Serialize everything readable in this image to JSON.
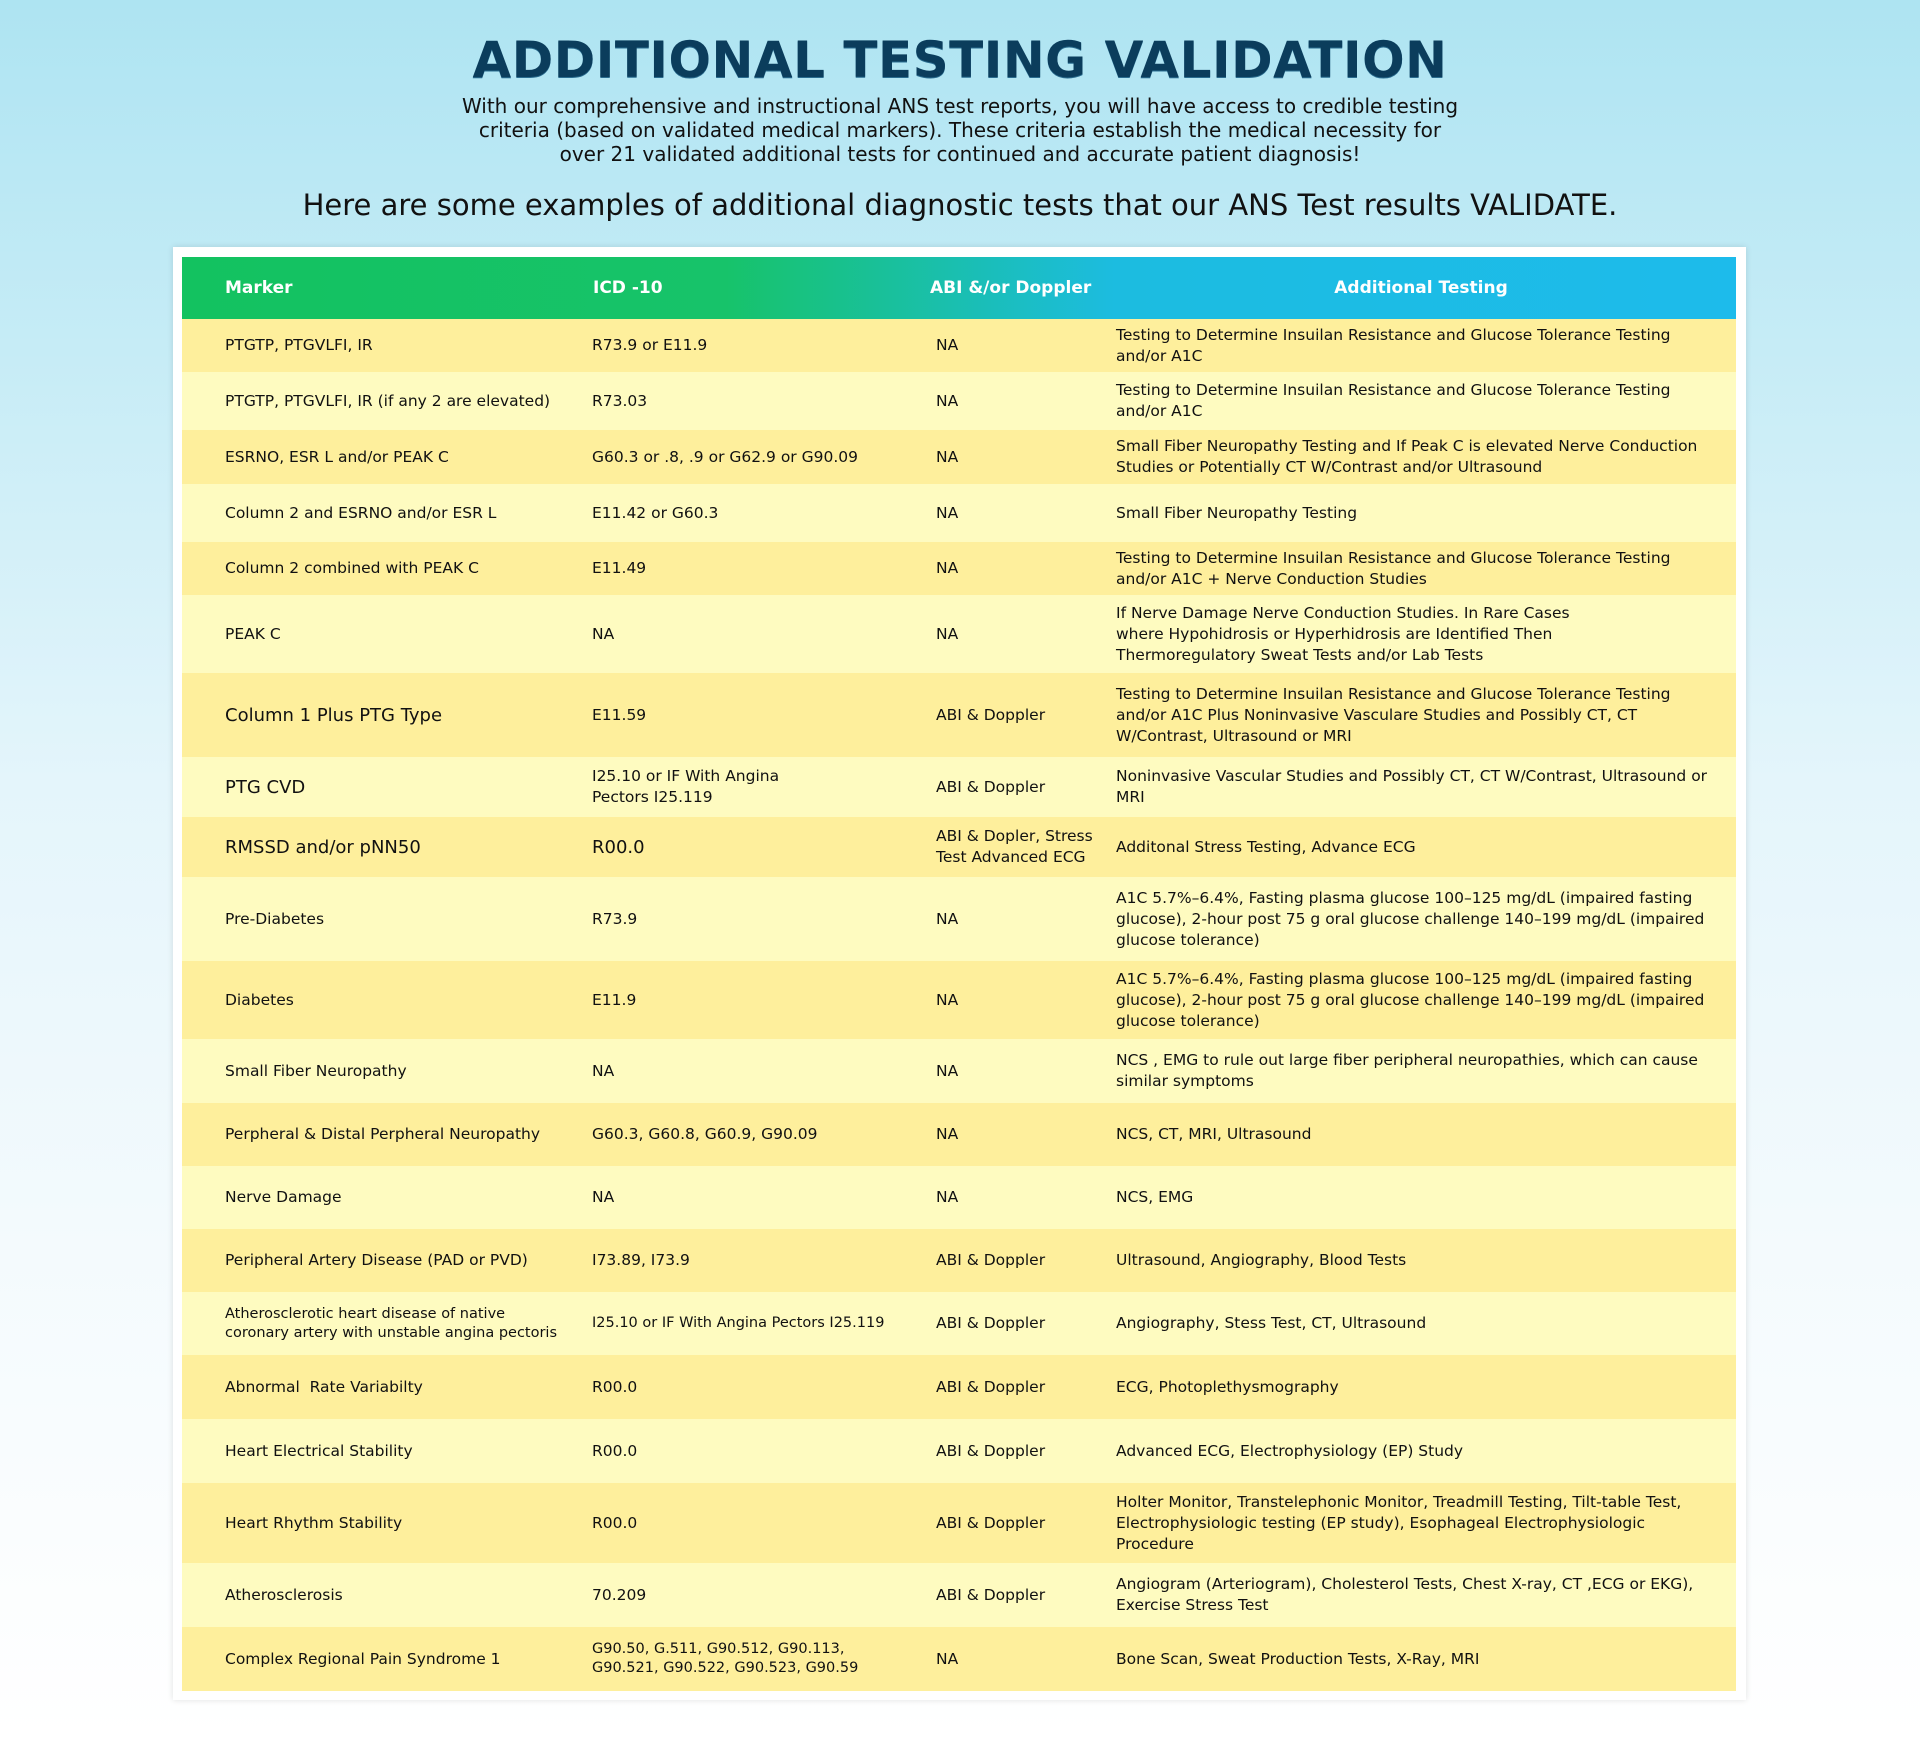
{
  "header": {
    "title": "ADDITIONAL TESTING VALIDATION",
    "intro": "With our comprehensive and instructional ANS test reports, you will have access to credible testing criteria (based on validated medical markers). These criteria establish the medical necessity for over 21 validated additional tests for continued and accurate patient diagnosis!",
    "subhead": "Here are some examples of additional diagnostic tests that our ANS Test results VALIDATE."
  },
  "table": {
    "columns": [
      "Marker",
      "ICD -10",
      "ABI &/or Doppler",
      "Additional Testing"
    ],
    "rows": [
      {
        "marker": "PTGTP, PTGVLFI, IR",
        "icd": "R73.9 or E11.9",
        "abi": "NA",
        "testing": "Testing to Determine Insuilan Resistance and Glucose Tolerance Testing and/or A1C"
      },
      {
        "marker": "PTGTP, PTGVLFI, IR (if any 2 are elevated)",
        "icd": "R73.03",
        "abi": "NA",
        "testing": "Testing to Determine Insuilan Resistance and Glucose Tolerance Testing and/or A1C"
      },
      {
        "marker": "ESRNO, ESR L and/or PEAK C",
        "icd": "G60.3 or .8, .9 or G62.9 or G90.09",
        "abi": "NA",
        "testing": "Small Fiber Neuropathy Testing and If Peak C is elevated Nerve Conduction Studies or Potentially CT W/Contrast and/or Ultrasound"
      },
      {
        "marker": "Column 2 and ESRNO and/or ESR L",
        "icd": "E11.42 or G60.3",
        "abi": "NA",
        "testing": "Small Fiber Neuropathy Testing"
      },
      {
        "marker": "Column 2 combined with PEAK C",
        "icd": "E11.49",
        "abi": "NA",
        "testing": "Testing to Determine Insuilan Resistance and Glucose Tolerance Testing and/or A1C + Nerve Conduction Studies"
      },
      {
        "marker": "PEAK C",
        "icd": "NA",
        "abi": "NA",
        "testing": "If Nerve Damage Nerve Conduction Studies.  In Rare Cases where Hypohidrosis or Hyperhidrosis are Identified Then Thermoregulatory Sweat Tests and/or Lab Tests"
      },
      {
        "marker": "Column 1 Plus PTG Type",
        "icd": "E11.59",
        "abi": "ABI & Doppler",
        "testing": "Testing to Determine Insuilan Resistance and Glucose Tolerance Testing and/or A1C Plus Noninvasive Vasculare Studies and Possibly CT, CT W/Contrast, Ultrasound or MRI"
      },
      {
        "marker": "PTG CVD",
        "icd": "I25.10 or IF With Angina Pectors I25.119",
        "abi": "ABI & Doppler",
        "testing": "Noninvasive Vascular Studies and Possibly CT, CT W/Contrast, Ultrasound or MRI"
      },
      {
        "marker": "RMSSD and/or pNN50",
        "icd": "R00.0",
        "abi": "ABI & Dopler, Stress Test Advanced ECG",
        "testing": "Additonal Stress Testing, Advance ECG"
      },
      {
        "marker": "Pre-Diabetes",
        "icd": "R73.9",
        "abi": "NA",
        "testing": "A1C 5.7%–6.4%, Fasting plasma glucose 100–125 mg/dL (impaired fasting glucose), 2-hour post 75 g oral glucose challenge 140–199 mg/dL (impaired glucose tolerance)"
      },
      {
        "marker": "Diabetes",
        "icd": "E11.9",
        "abi": "NA",
        "testing": "A1C 5.7%–6.4%, Fasting plasma glucose 100–125 mg/dL (impaired fasting glucose), 2-hour post 75 g oral glucose challenge 140–199 mg/dL (impaired glucose tolerance)"
      },
      {
        "marker": "Small Fiber Neuropathy",
        "icd": "NA",
        "abi": "NA",
        "testing": "NCS , EMG to rule out large fiber peripheral neuropathies, which can cause similar symptoms"
      },
      {
        "marker": "Perpheral & Distal Perpheral Neuropathy",
        "icd": "G60.3, G60.8, G60.9, G90.09",
        "abi": "NA",
        "testing": "NCS, CT, MRI, Ultrasound"
      },
      {
        "marker": "Nerve Damage",
        "icd": "NA",
        "abi": "NA",
        "testing": "NCS, EMG"
      },
      {
        "marker": "Peripheral Artery Disease (PAD or PVD)",
        "icd": "I73.89, I73.9",
        "abi": "ABI & Doppler",
        "testing": "Ultrasound, Angiography, Blood Tests"
      },
      {
        "marker": "Atherosclerotic heart disease of native coronary artery with unstable angina pectoris",
        "icd": "I25.10 or IF With Angina Pectors I25.119",
        "abi": "ABI & Doppler",
        "testing": "Angiography, Stess Test, CT, Ultrasound"
      },
      {
        "marker": "Abnormal  Rate Variabilty",
        "icd": "R00.0",
        "abi": "ABI & Doppler",
        "testing": "ECG, Photoplethysmography"
      },
      {
        "marker": "Heart Electrical Stability",
        "icd": "R00.0",
        "abi": "ABI & Doppler",
        "testing": "Advanced ECG, Electrophysiology (EP) Study"
      },
      {
        "marker": "Heart Rhythm Stability",
        "icd": "R00.0",
        "abi": "ABI & Doppler",
        "testing": "Holter Monitor, Transtelephonic Monitor, Treadmill Testing, Tilt-table Test, Electrophysiologic testing (EP study), Esophageal Electrophysiologic Procedure"
      },
      {
        "marker": "Atherosclerosis",
        "icd": "70.209",
        "abi": "ABI & Doppler",
        "testing": "Angiogram (Arteriogram), Cholesterol Tests, Chest X-ray, CT ,ECG or EKG), Exercise Stress Test"
      },
      {
        "marker": "Complex Regional Pain Syndrome 1",
        "icd": "G90.50, G.511, G90.512, G90.113, G90.521, G90.522, G90.523, G90.59",
        "abi": "NA",
        "testing": "Bone Scan, Sweat Production Tests, X-Ray, MRI"
      }
    ]
  }
}
